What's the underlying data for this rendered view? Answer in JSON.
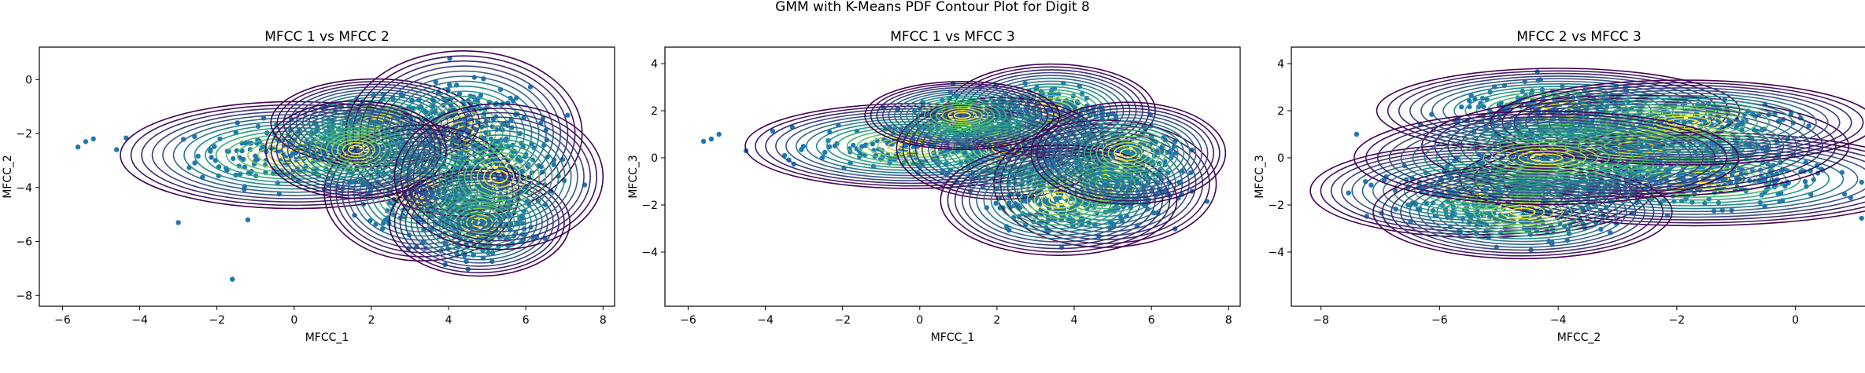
{
  "figure": {
    "suptitle": "GMM with K-Means PDF Contour Plot for Digit 8"
  },
  "style": {
    "point_color": "#1f77b4",
    "contour_colormap": [
      "#440154",
      "#3b528b",
      "#21918c",
      "#5ec962",
      "#fde725"
    ]
  },
  "chart_data": [
    {
      "type": "scatter",
      "title": "MFCC 1 vs MFCC 2",
      "xlabel": "MFCC_1",
      "ylabel": "MFCC_2",
      "xlim": [
        -6.6,
        8.3
      ],
      "ylim": [
        -8.4,
        1.2
      ],
      "xticks": [
        -6,
        -4,
        -2,
        0,
        2,
        4,
        6,
        8
      ],
      "yticks": [
        -8,
        -6,
        -4,
        -2,
        0
      ],
      "outliers": [
        [
          -5.6,
          -2.5
        ],
        [
          -5.4,
          -2.3
        ],
        [
          -5.2,
          -2.2
        ],
        [
          -1.6,
          -7.4
        ],
        [
          -3.0,
          -5.3
        ],
        [
          -1.2,
          -5.2
        ],
        [
          -4.6,
          -2.6
        ]
      ],
      "clusters": [
        {
          "mean": [
            0.0,
            -2.8
          ],
          "sx": 1.25,
          "sy": 0.55,
          "weight": 0.14
        },
        {
          "mean": [
            2.1,
            -1.6
          ],
          "sx": 0.75,
          "sy": 0.45,
          "weight": 0.12
        },
        {
          "mean": [
            4.4,
            -2.0
          ],
          "sx": 0.85,
          "sy": 0.85,
          "weight": 0.2
        },
        {
          "mean": [
            3.3,
            -4.2
          ],
          "sx": 0.7,
          "sy": 0.7,
          "weight": 0.14
        },
        {
          "mean": [
            4.8,
            -5.3
          ],
          "sx": 0.65,
          "sy": 0.55,
          "weight": 0.2
        },
        {
          "mean": [
            1.6,
            -2.6
          ],
          "sx": 0.65,
          "sy": 0.5,
          "weight": 0.1
        },
        {
          "mean": [
            5.3,
            -3.6
          ],
          "sx": 0.75,
          "sy": 0.75,
          "weight": 0.1
        }
      ]
    },
    {
      "type": "scatter",
      "title": "MFCC 1 vs MFCC 3",
      "xlabel": "MFCC_1",
      "ylabel": "MFCC_3",
      "xlim": [
        -6.6,
        8.3
      ],
      "ylim": [
        -6.3,
        4.7
      ],
      "xticks": [
        -6,
        -4,
        -2,
        0,
        2,
        4,
        6,
        8
      ],
      "yticks": [
        -4,
        -2,
        0,
        2,
        4
      ],
      "outliers": [
        [
          -5.6,
          0.7
        ],
        [
          -5.4,
          0.8
        ],
        [
          -5.2,
          1.0
        ],
        [
          -4.5,
          0.3
        ],
        [
          -3.5,
          0.1
        ]
      ],
      "clusters": [
        {
          "mean": [
            -0.2,
            0.5
          ],
          "sx": 1.2,
          "sy": 0.5,
          "weight": 0.14
        },
        {
          "mean": [
            3.4,
            2.0
          ],
          "sx": 0.75,
          "sy": 0.55,
          "weight": 0.16
        },
        {
          "mean": [
            2.1,
            0.4
          ],
          "sx": 0.75,
          "sy": 0.6,
          "weight": 0.16
        },
        {
          "mean": [
            4.8,
            -1.1
          ],
          "sx": 0.8,
          "sy": 0.75,
          "weight": 0.22
        },
        {
          "mean": [
            3.6,
            -1.8
          ],
          "sx": 0.85,
          "sy": 0.65,
          "weight": 0.12
        },
        {
          "mean": [
            1.1,
            1.8
          ],
          "sx": 0.7,
          "sy": 0.4,
          "weight": 0.1
        },
        {
          "mean": [
            5.4,
            0.2
          ],
          "sx": 0.7,
          "sy": 0.6,
          "weight": 0.1
        }
      ]
    },
    {
      "type": "scatter",
      "title": "MFCC 2 vs MFCC 3",
      "xlabel": "MFCC_2",
      "ylabel": "MFCC_3",
      "xlim": [
        -8.5,
        1.2
      ],
      "ylim": [
        -6.3,
        4.7
      ],
      "xticks": [
        -8,
        -6,
        -4,
        -2,
        0
      ],
      "yticks": [
        -4,
        -2,
        0,
        2,
        4
      ],
      "outliers": [
        [
          -7.4,
          1.0
        ],
        [
          -6.9,
          -0.8
        ],
        [
          -6.5,
          -2.0
        ]
      ],
      "clusters": [
        {
          "mean": [
            -4.0,
            2.0
          ],
          "sx": 0.85,
          "sy": 0.5,
          "weight": 0.16
        },
        {
          "mean": [
            -5.3,
            -1.4
          ],
          "sx": 0.8,
          "sy": 0.55,
          "weight": 0.14
        },
        {
          "mean": [
            -1.7,
            -0.9
          ],
          "sx": 1.1,
          "sy": 0.55,
          "weight": 0.22
        },
        {
          "mean": [
            -2.7,
            0.5
          ],
          "sx": 1.0,
          "sy": 0.6,
          "weight": 0.14
        },
        {
          "mean": [
            -4.6,
            -2.3
          ],
          "sx": 0.7,
          "sy": 0.55,
          "weight": 0.12
        },
        {
          "mean": [
            -1.9,
            1.5
          ],
          "sx": 0.9,
          "sy": 0.5,
          "weight": 0.12
        },
        {
          "mean": [
            -4.2,
            0.0
          ],
          "sx": 0.9,
          "sy": 0.55,
          "weight": 0.1
        }
      ]
    }
  ]
}
